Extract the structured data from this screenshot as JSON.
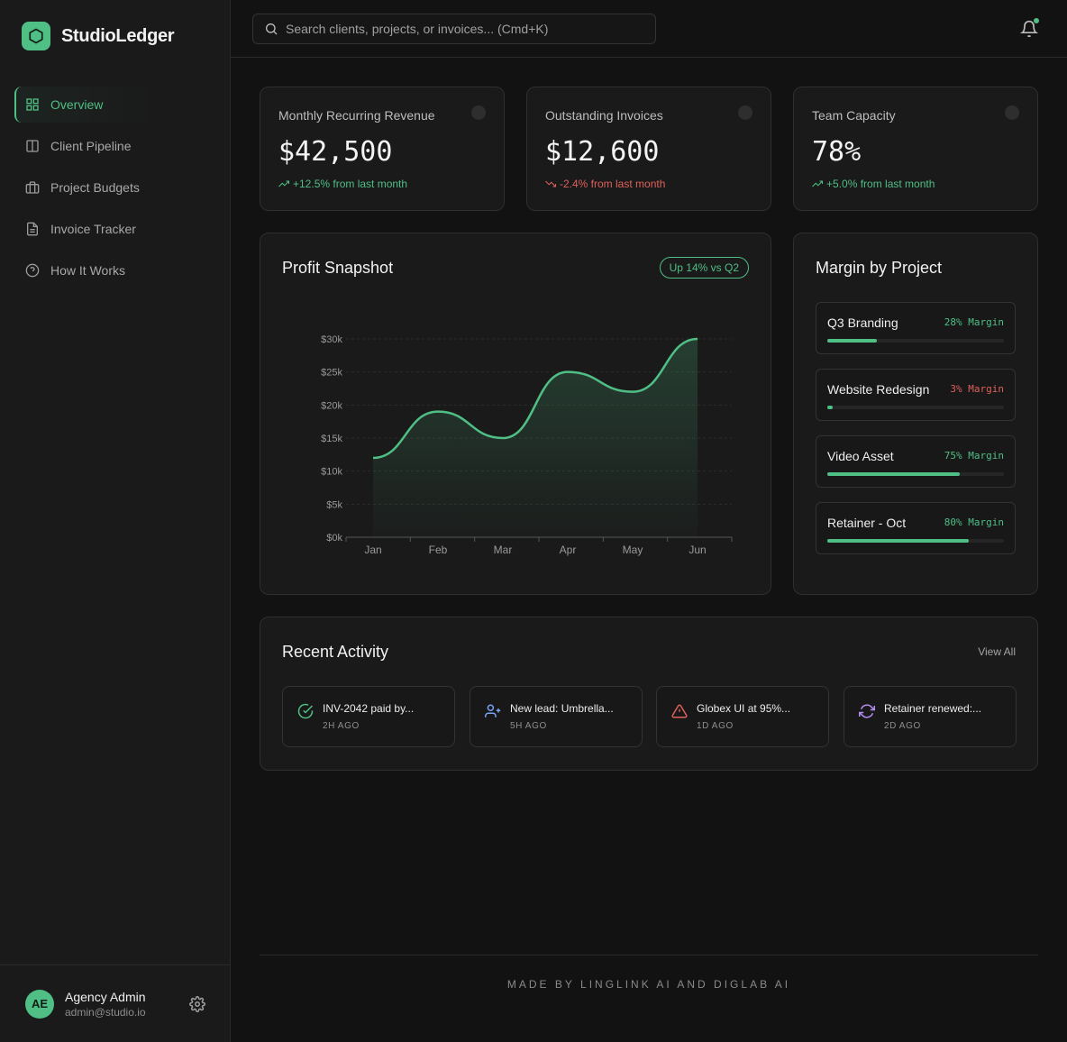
{
  "brand": {
    "name": "StudioLedger"
  },
  "nav": {
    "items": [
      {
        "label": "Overview",
        "icon": "grid-icon",
        "active": true
      },
      {
        "label": "Client Pipeline",
        "icon": "columns-icon"
      },
      {
        "label": "Project Budgets",
        "icon": "briefcase-icon"
      },
      {
        "label": "Invoice Tracker",
        "icon": "file-text-icon"
      },
      {
        "label": "How It Works",
        "icon": "help-circle-icon"
      }
    ]
  },
  "user": {
    "initials": "AE",
    "name": "Agency Admin",
    "email": "admin@studio.io"
  },
  "search": {
    "placeholder": "Search clients, projects, or invoices... (Cmd+K)"
  },
  "colors": {
    "accent": "#4fbf85",
    "negative": "#e0605a",
    "background": "#121212",
    "card": "#1a1a1a"
  },
  "stats": [
    {
      "label": "Monthly Recurring Revenue",
      "value": "$42,500",
      "delta": "+12.5% from last month",
      "trend": "up"
    },
    {
      "label": "Outstanding Invoices",
      "value": "$12,600",
      "delta": "-2.4% from last month",
      "trend": "down"
    },
    {
      "label": "Team Capacity",
      "value": "78%",
      "delta": "+5.0% from last month",
      "trend": "up"
    }
  ],
  "profit": {
    "title": "Profit Snapshot",
    "badge": "Up 14% vs Q2"
  },
  "chart_data": {
    "type": "area",
    "title": "Profit Snapshot",
    "categories": [
      "Jan",
      "Feb",
      "Mar",
      "Apr",
      "May",
      "Jun"
    ],
    "series": [
      {
        "values": [
          12000,
          19000,
          15000,
          25000,
          22000,
          30000
        ]
      }
    ],
    "y_ticks": [
      "$0k",
      "$5k",
      "$10k",
      "$15k",
      "$20k",
      "$25k",
      "$30k"
    ],
    "ylim": [
      0,
      30000
    ],
    "grid": true,
    "legend": "none"
  },
  "margins": {
    "title": "Margin by Project",
    "items": [
      {
        "name": "Q3 Branding",
        "margin_text": "28% Margin",
        "margin": 28,
        "status": "positive"
      },
      {
        "name": "Website Redesign",
        "margin_text": "3% Margin",
        "margin": 3,
        "status": "negative"
      },
      {
        "name": "Video Asset",
        "margin_text": "75% Margin",
        "margin": 75,
        "status": "positive"
      },
      {
        "name": "Retainer - Oct",
        "margin_text": "80% Margin",
        "margin": 80,
        "status": "positive"
      }
    ]
  },
  "activity": {
    "title": "Recent Activity",
    "view_all": "View All",
    "items": [
      {
        "text": "INV-2042 paid by...",
        "time": "2H AGO",
        "icon": "check-circle-icon",
        "color": "#4fbf85"
      },
      {
        "text": "New lead: Umbrella...",
        "time": "5H AGO",
        "icon": "user-plus-icon",
        "color": "#7aa2f7"
      },
      {
        "text": "Globex UI at 95%...",
        "time": "1D AGO",
        "icon": "alert-triangle-icon",
        "color": "#e0605a"
      },
      {
        "text": "Retainer renewed:...",
        "time": "2D AGO",
        "icon": "refresh-icon",
        "color": "#b48cf2"
      }
    ]
  },
  "footer": {
    "text": "MADE BY LINGLINK AI AND DIGLAB AI"
  }
}
